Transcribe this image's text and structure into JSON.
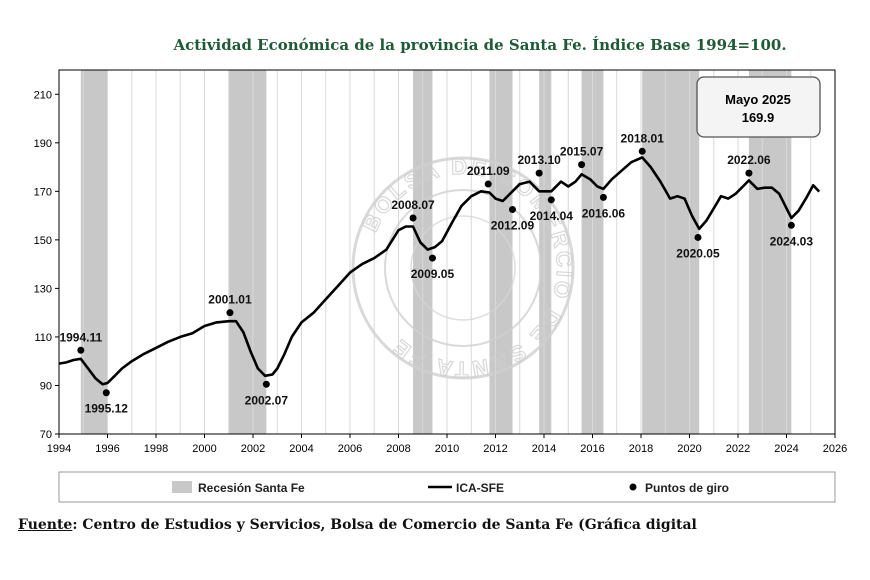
{
  "chart_data": {
    "type": "line",
    "title": "Actividad Económica de la provincia de Santa Fe. Índice Base 1994=100.",
    "xlim": [
      1994,
      2026
    ],
    "ylim": [
      70,
      220
    ],
    "xticks": [
      1994,
      1996,
      1998,
      2000,
      2002,
      2004,
      2006,
      2008,
      2010,
      2012,
      2014,
      2016,
      2018,
      2020,
      2022,
      2024,
      2026
    ],
    "yticks": [
      70,
      90,
      110,
      130,
      150,
      170,
      190,
      210
    ],
    "grid": "vertical-yearly",
    "legend_position": "bottom",
    "callout": {
      "line1": "Mayo 2025",
      "line2": "169.9"
    },
    "legend": {
      "recession": "Recesión Santa Fe",
      "line": "ICA-SFE",
      "points": "Puntos de giro"
    },
    "recessions": [
      [
        1994.9,
        1996.0
      ],
      [
        2001.0,
        2002.55
      ],
      [
        2008.6,
        2009.4
      ],
      [
        2011.75,
        2012.7
      ],
      [
        2013.8,
        2014.3
      ],
      [
        2015.55,
        2016.45
      ],
      [
        2018.05,
        2020.4
      ],
      [
        2022.45,
        2024.2
      ]
    ],
    "series": [
      {
        "name": "ICA-SFE",
        "x": [
          1994.0,
          1994.3,
          1994.6,
          1994.9,
          1995.2,
          1995.5,
          1995.8,
          1996.0,
          1996.3,
          1996.6,
          1997.0,
          1997.5,
          1998.0,
          1998.5,
          1999.0,
          1999.5,
          2000.0,
          2000.5,
          2001.0,
          2001.3,
          2001.6,
          2001.9,
          2002.2,
          2002.5,
          2002.8,
          2003.0,
          2003.3,
          2003.6,
          2004.0,
          2004.5,
          2005.0,
          2005.5,
          2006.0,
          2006.5,
          2007.0,
          2007.5,
          2008.0,
          2008.3,
          2008.6,
          2008.9,
          2009.2,
          2009.5,
          2009.8,
          2010.2,
          2010.6,
          2011.0,
          2011.4,
          2011.75,
          2012.0,
          2012.3,
          2012.7,
          2013.0,
          2013.4,
          2013.8,
          2014.0,
          2014.3,
          2014.7,
          2015.0,
          2015.3,
          2015.55,
          2015.9,
          2016.2,
          2016.45,
          2016.8,
          2017.2,
          2017.6,
          2018.05,
          2018.4,
          2018.8,
          2019.2,
          2019.5,
          2019.8,
          2020.1,
          2020.4,
          2020.7,
          2021.0,
          2021.3,
          2021.6,
          2021.9,
          2022.2,
          2022.45,
          2022.8,
          2023.1,
          2023.4,
          2023.7,
          2024.0,
          2024.2,
          2024.5,
          2024.8,
          2025.1,
          2025.35
        ],
        "y": [
          99,
          99.5,
          100.5,
          101,
          97,
          93,
          90.5,
          91,
          94,
          97,
          100,
          103,
          105.5,
          108,
          110,
          111.5,
          114.5,
          116,
          116.5,
          116.5,
          112,
          104,
          97,
          94,
          94.5,
          97,
          103,
          110,
          116,
          120,
          125.5,
          131,
          136.5,
          140,
          142.5,
          146,
          154,
          155.5,
          155.5,
          149,
          146,
          147,
          149.5,
          157,
          164,
          168,
          170,
          169.5,
          167,
          166,
          170,
          173,
          174,
          170,
          170,
          170,
          174,
          172,
          174,
          177,
          175,
          172,
          171,
          175,
          178.5,
          182,
          184,
          180,
          174,
          167,
          168,
          167,
          160,
          154.5,
          158,
          163,
          168,
          167,
          169,
          172,
          174.5,
          171,
          171.5,
          171.5,
          169,
          163,
          159,
          162,
          167,
          172.5,
          169.9
        ]
      }
    ],
    "turning_points": [
      {
        "label": "1994.11",
        "x": 1994.9,
        "y": 104.5,
        "above": true
      },
      {
        "label": "1995.12",
        "x": 1995.95,
        "y": 87,
        "above": false
      },
      {
        "label": "2001.01",
        "x": 2001.05,
        "y": 120,
        "above": true
      },
      {
        "label": "2002.07",
        "x": 2002.55,
        "y": 90.5,
        "above": false
      },
      {
        "label": "2008.07",
        "x": 2008.6,
        "y": 159,
        "above": true
      },
      {
        "label": "2009.05",
        "x": 2009.4,
        "y": 142.5,
        "above": false
      },
      {
        "label": "2011.09",
        "x": 2011.7,
        "y": 173,
        "above": true
      },
      {
        "label": "2012.09",
        "x": 2012.7,
        "y": 162.5,
        "above": false
      },
      {
        "label": "2013.10",
        "x": 2013.8,
        "y": 177.5,
        "above": true
      },
      {
        "label": "2014.04",
        "x": 2014.3,
        "y": 166.5,
        "above": false
      },
      {
        "label": "2015.07",
        "x": 2015.55,
        "y": 181,
        "above": true
      },
      {
        "label": "2016.06",
        "x": 2016.45,
        "y": 167.5,
        "above": false
      },
      {
        "label": "2018.01",
        "x": 2018.05,
        "y": 186.5,
        "above": true
      },
      {
        "label": "2020.05",
        "x": 2020.35,
        "y": 151,
        "above": false
      },
      {
        "label": "2022.06",
        "x": 2022.45,
        "y": 177.5,
        "above": true
      },
      {
        "label": "2024.03",
        "x": 2024.2,
        "y": 156,
        "above": false
      }
    ]
  },
  "footer": {
    "label": "Fuente",
    "text": ": Centro de Estudios y Servicios, Bolsa de Comercio de Santa Fe (Gráfica digital"
  },
  "watermark": {
    "text": "BOLSA DE COMERCIO DE SANTA FE"
  },
  "colors": {
    "recession": "#c8c8c8",
    "line": "#000000",
    "grid": "#d9d9d9",
    "title": "#1f5a36"
  }
}
